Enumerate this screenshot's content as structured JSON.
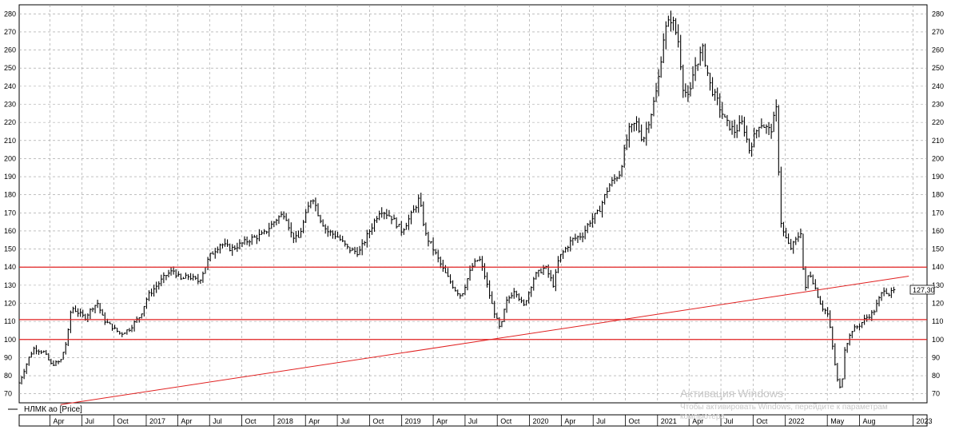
{
  "chart_data": {
    "type": "ohlc",
    "series_name": "НЛМК ао [Price]",
    "last_value_label": "127,30",
    "ylim": [
      65,
      285
    ],
    "y_ticks": [
      70,
      80,
      90,
      100,
      110,
      120,
      130,
      140,
      150,
      160,
      170,
      180,
      190,
      200,
      210,
      220,
      230,
      240,
      250,
      260,
      270,
      280
    ],
    "x_range": [
      "2016-01-04",
      "2023-02-10"
    ],
    "x_ticks": [
      {
        "date": "2016-04-01",
        "label": "Apr"
      },
      {
        "date": "2016-07-01",
        "label": "Jul"
      },
      {
        "date": "2016-10-01",
        "label": "Oct"
      },
      {
        "date": "2017-01-01",
        "label": "2017"
      },
      {
        "date": "2017-04-01",
        "label": "Apr"
      },
      {
        "date": "2017-07-01",
        "label": "Jul"
      },
      {
        "date": "2017-10-01",
        "label": "Oct"
      },
      {
        "date": "2018-01-01",
        "label": "2018"
      },
      {
        "date": "2018-04-01",
        "label": "Apr"
      },
      {
        "date": "2018-07-01",
        "label": "Jul"
      },
      {
        "date": "2018-10-01",
        "label": "Oct"
      },
      {
        "date": "2019-01-01",
        "label": "2019"
      },
      {
        "date": "2019-04-01",
        "label": "Apr"
      },
      {
        "date": "2019-07-01",
        "label": "Jul"
      },
      {
        "date": "2019-10-01",
        "label": "Oct"
      },
      {
        "date": "2020-01-01",
        "label": "2020"
      },
      {
        "date": "2020-04-01",
        "label": "Apr"
      },
      {
        "date": "2020-07-01",
        "label": "Jul"
      },
      {
        "date": "2020-10-01",
        "label": "Oct"
      },
      {
        "date": "2021-01-01",
        "label": "2021"
      },
      {
        "date": "2021-04-01",
        "label": "Apr"
      },
      {
        "date": "2021-07-01",
        "label": "Jul"
      },
      {
        "date": "2021-10-01",
        "label": "Oct"
      },
      {
        "date": "2022-01-01",
        "label": "2022"
      },
      {
        "date": "2022-05-01",
        "label": "May"
      },
      {
        "date": "2022-08-01",
        "label": "Aug"
      },
      {
        "date": "2023-01-01",
        "label": "2023"
      }
    ],
    "price_path": [
      [
        "2016-01-04",
        76
      ],
      [
        "2016-02-01",
        90
      ],
      [
        "2016-02-15",
        95
      ],
      [
        "2016-03-15",
        93
      ],
      [
        "2016-04-05",
        86
      ],
      [
        "2016-05-01",
        88
      ],
      [
        "2016-05-20",
        100
      ],
      [
        "2016-06-01",
        118
      ],
      [
        "2016-06-20",
        115
      ],
      [
        "2016-07-10",
        112
      ],
      [
        "2016-08-01",
        118
      ],
      [
        "2016-08-15",
        120
      ],
      [
        "2016-09-01",
        111
      ],
      [
        "2016-10-01",
        106
      ],
      [
        "2016-10-20",
        103
      ],
      [
        "2016-11-15",
        106
      ],
      [
        "2016-12-01",
        110
      ],
      [
        "2016-12-15",
        113
      ],
      [
        "2017-01-05",
        124
      ],
      [
        "2017-02-10",
        132
      ],
      [
        "2017-03-01",
        136
      ],
      [
        "2017-03-20",
        138
      ],
      [
        "2017-04-10",
        133
      ],
      [
        "2017-05-01",
        135
      ],
      [
        "2017-06-01",
        132
      ],
      [
        "2017-07-01",
        146
      ],
      [
        "2017-08-01",
        153
      ],
      [
        "2017-09-01",
        150
      ],
      [
        "2017-10-01",
        153
      ],
      [
        "2017-11-01",
        156
      ],
      [
        "2017-12-01",
        158
      ],
      [
        "2018-01-10",
        167
      ],
      [
        "2018-02-01",
        170
      ],
      [
        "2018-02-20",
        158
      ],
      [
        "2018-03-10",
        155
      ],
      [
        "2018-04-01",
        168
      ],
      [
        "2018-04-20",
        180
      ],
      [
        "2018-05-10",
        168
      ],
      [
        "2018-06-01",
        160
      ],
      [
        "2018-07-01",
        157
      ],
      [
        "2018-08-01",
        150
      ],
      [
        "2018-09-01",
        148
      ],
      [
        "2018-10-01",
        160
      ],
      [
        "2018-11-01",
        172
      ],
      [
        "2018-12-01",
        168
      ],
      [
        "2019-01-01",
        160
      ],
      [
        "2019-02-01",
        170
      ],
      [
        "2019-02-20",
        178
      ],
      [
        "2019-03-10",
        158
      ],
      [
        "2019-04-01",
        150
      ],
      [
        "2019-05-01",
        138
      ],
      [
        "2019-06-01",
        128
      ],
      [
        "2019-06-20",
        124
      ],
      [
        "2019-07-20",
        140
      ],
      [
        "2019-08-10",
        145
      ],
      [
        "2019-08-25",
        136
      ],
      [
        "2019-09-15",
        120
      ],
      [
        "2019-10-01",
        110
      ],
      [
        "2019-10-10",
        105
      ],
      [
        "2019-10-25",
        120
      ],
      [
        "2019-11-20",
        128
      ],
      [
        "2019-12-15",
        118
      ],
      [
        "2020-01-15",
        135
      ],
      [
        "2020-02-15",
        140
      ],
      [
        "2020-03-10",
        130
      ],
      [
        "2020-03-25",
        145
      ],
      [
        "2020-05-01",
        155
      ],
      [
        "2020-06-01",
        158
      ],
      [
        "2020-06-20",
        165
      ],
      [
        "2020-07-15",
        170
      ],
      [
        "2020-08-15",
        185
      ],
      [
        "2020-09-15",
        192
      ],
      [
        "2020-10-10",
        215
      ],
      [
        "2020-11-01",
        220
      ],
      [
        "2020-11-20",
        210
      ],
      [
        "2020-12-15",
        226
      ],
      [
        "2021-01-01",
        240
      ],
      [
        "2021-01-20",
        270
      ],
      [
        "2021-02-10",
        278
      ],
      [
        "2021-03-01",
        265
      ],
      [
        "2021-03-15",
        240
      ],
      [
        "2021-04-01",
        232
      ],
      [
        "2021-04-15",
        250
      ],
      [
        "2021-05-10",
        260
      ],
      [
        "2021-06-01",
        240
      ],
      [
        "2021-06-20",
        232
      ],
      [
        "2021-07-15",
        220
      ],
      [
        "2021-08-10",
        215
      ],
      [
        "2021-09-01",
        220
      ],
      [
        "2021-09-20",
        205
      ],
      [
        "2021-10-20",
        220
      ],
      [
        "2021-11-20",
        215
      ],
      [
        "2021-12-10",
        230
      ],
      [
        "2021-12-15",
        170
      ],
      [
        "2021-12-25",
        160
      ],
      [
        "2022-01-15",
        150
      ],
      [
        "2022-02-01",
        155
      ],
      [
        "2022-02-15",
        160
      ],
      [
        "2022-02-25",
        125
      ],
      [
        "2022-03-10",
        138
      ],
      [
        "2022-03-25",
        130
      ],
      [
        "2022-04-15",
        118
      ],
      [
        "2022-05-01",
        115
      ],
      [
        "2022-05-10",
        105
      ],
      [
        "2022-05-20",
        90
      ],
      [
        "2022-06-01",
        75
      ],
      [
        "2022-06-10",
        72
      ],
      [
        "2022-06-20",
        95
      ],
      [
        "2022-07-10",
        105
      ],
      [
        "2022-08-01",
        108
      ],
      [
        "2022-08-20",
        112
      ],
      [
        "2022-09-10",
        115
      ],
      [
        "2022-09-25",
        122
      ],
      [
        "2022-10-10",
        128
      ],
      [
        "2022-10-25",
        125
      ],
      [
        "2022-11-10",
        127.3
      ]
    ],
    "horizontal_lines": [
      140,
      111,
      100
    ],
    "trend_line": {
      "points": [
        [
          "2016-05-01",
          64
        ],
        [
          "2022-12-20",
          135
        ]
      ]
    },
    "watermark": {
      "line1": "Активация Windows",
      "line2": "Чтобы активировать Windows, перейдите к параметрам",
      "line3": "компьютера."
    }
  }
}
